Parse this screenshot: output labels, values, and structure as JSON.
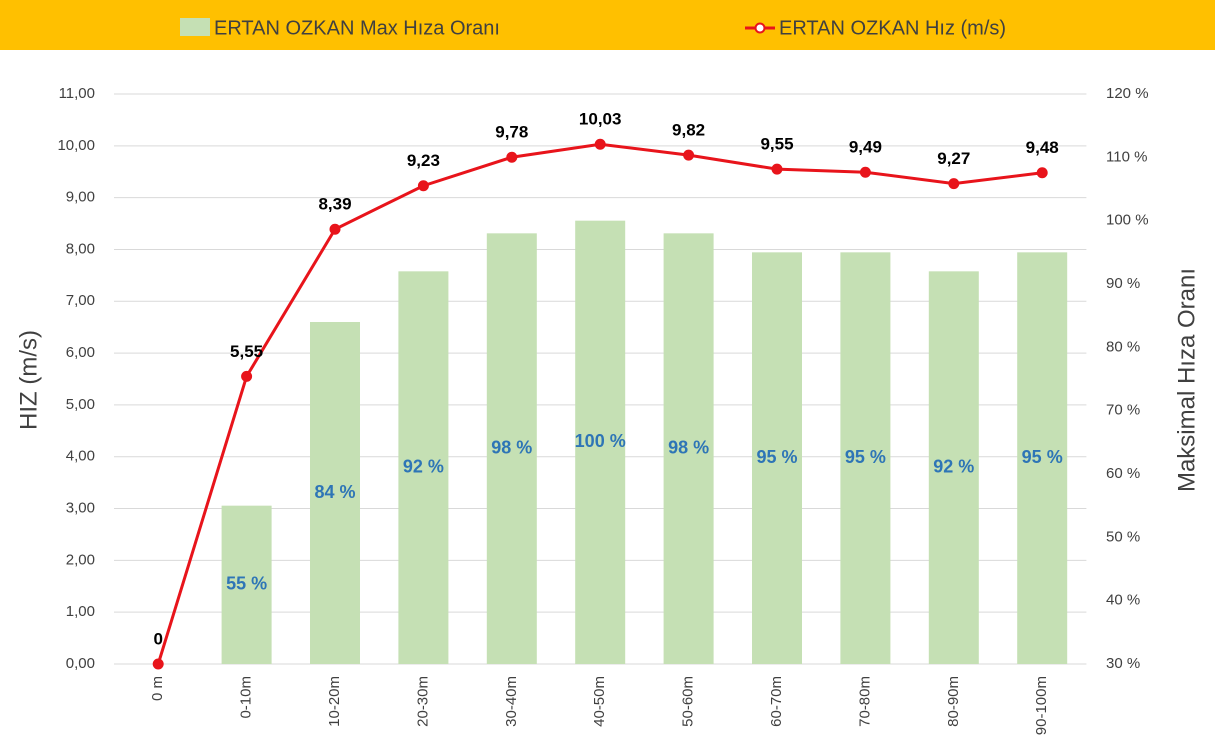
{
  "chart_data": {
    "type": "combo",
    "categories": [
      "0 m",
      "0-10m",
      "10-20m",
      "20-30m",
      "30-40m",
      "40-50m",
      "50-60m",
      "60-70m",
      "70-80m",
      "80-90m",
      "90-100m"
    ],
    "series": [
      {
        "name": "ERTAN OZKAN Max Hıza Oranı",
        "type": "bar",
        "axis": "y2",
        "color": "#c5e0b4",
        "values": [
          null,
          55,
          84,
          92,
          98,
          100,
          98,
          95,
          95,
          92,
          95
        ],
        "value_labels": [
          null,
          "55 %",
          "84 %",
          "92 %",
          "98 %",
          "100 %",
          "98 %",
          "95 %",
          "95 %",
          "92 %",
          "95 %"
        ]
      },
      {
        "name": "ERTAN OZKAN Hız (m/s)",
        "type": "line",
        "axis": "y",
        "color": "#e8141b",
        "values": [
          0,
          5.55,
          8.39,
          9.23,
          9.78,
          10.03,
          9.82,
          9.55,
          9.49,
          9.27,
          9.48
        ],
        "value_labels": [
          "0",
          "5,55",
          "8,39",
          "9,23",
          "9,78",
          "10,03",
          "9,82",
          "9,55",
          "9,49",
          "9,27",
          "9,48"
        ]
      }
    ],
    "ylabel": "HIZ (m/s)",
    "y2label": "Maksimal Hıza Oranı",
    "ylim": [
      0,
      11
    ],
    "yticks": [
      {
        "value": 0,
        "label": "0,00"
      },
      {
        "value": 1,
        "label": "1,00"
      },
      {
        "value": 2,
        "label": "2,00"
      },
      {
        "value": 3,
        "label": "3,00"
      },
      {
        "value": 4,
        "label": "4,00"
      },
      {
        "value": 5,
        "label": "5,00"
      },
      {
        "value": 6,
        "label": "6,00"
      },
      {
        "value": 7,
        "label": "7,00"
      },
      {
        "value": 8,
        "label": "8,00"
      },
      {
        "value": 9,
        "label": "9,00"
      },
      {
        "value": 10,
        "label": "10,00"
      },
      {
        "value": 11,
        "label": "11,00"
      }
    ],
    "y2lim": [
      30,
      120
    ],
    "y2ticks": [
      {
        "value": 30,
        "label": "30 %"
      },
      {
        "value": 40,
        "label": "40 %"
      },
      {
        "value": 50,
        "label": "50 %"
      },
      {
        "value": 60,
        "label": "60 %"
      },
      {
        "value": 70,
        "label": "70 %"
      },
      {
        "value": 80,
        "label": "80 %"
      },
      {
        "value": 90,
        "label": "90 %"
      },
      {
        "value": 100,
        "label": "100 %"
      },
      {
        "value": 110,
        "label": "110 %"
      },
      {
        "value": 120,
        "label": "120 %"
      }
    ],
    "grid": true,
    "legend": "top",
    "legend_background": "#ffc000",
    "bar_label_color": "#2e75b6",
    "line_label_color": "#000000"
  }
}
